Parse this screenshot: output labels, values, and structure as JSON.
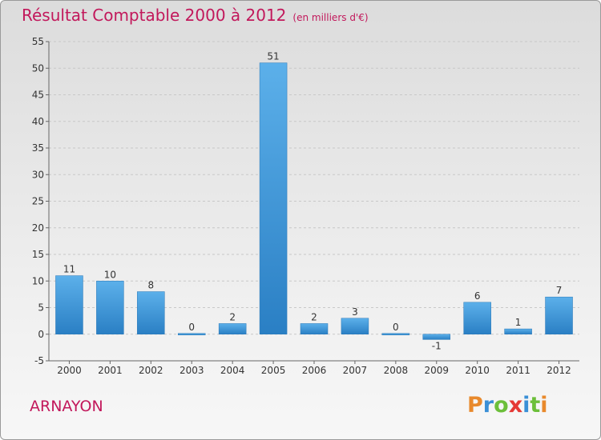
{
  "title": "Résultat Comptable 2000 à 2012",
  "subtitle": "(en milliers d'€)",
  "commune": "ARNAYON",
  "brand": "Proxiti",
  "brand_colors": [
    "#e8892c",
    "#3a8fd6",
    "#6cbf3a",
    "#e53935",
    "#3a8fd6",
    "#6cbf3a",
    "#e8892c"
  ],
  "colors": {
    "title": "#c2185b",
    "bar_top": "#5cb0ea",
    "bar_bottom": "#2a7fc4",
    "grid": "#c8c8c8"
  },
  "chart_data": {
    "type": "bar",
    "categories": [
      "2000",
      "2001",
      "2002",
      "2003",
      "2004",
      "2005",
      "2006",
      "2007",
      "2008",
      "2009",
      "2010",
      "2011",
      "2012"
    ],
    "values": [
      11,
      10,
      8,
      0,
      2,
      51,
      2,
      3,
      0,
      -1,
      6,
      1,
      7
    ],
    "value_labels": [
      "11",
      "10",
      "8",
      "0",
      "2",
      "51",
      "2",
      "3",
      "0",
      "-1",
      "6",
      "1",
      "7"
    ],
    "ylim": [
      -5,
      55
    ],
    "yticks": [
      -5,
      0,
      5,
      10,
      15,
      20,
      25,
      30,
      35,
      40,
      45,
      50,
      55
    ],
    "grid": "horizontal dashed"
  }
}
